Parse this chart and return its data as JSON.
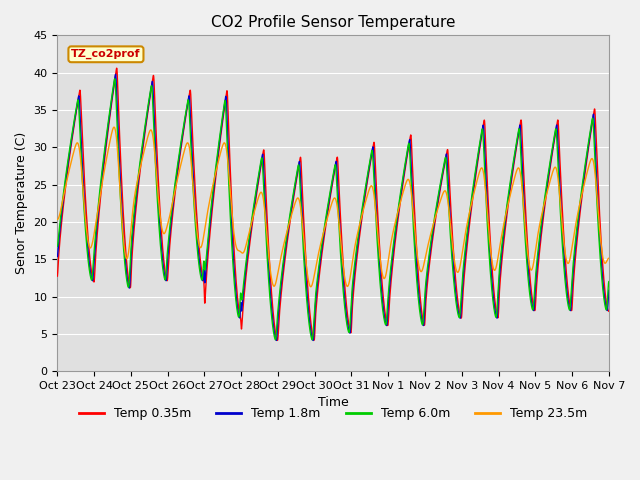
{
  "title": "CO2 Profile Sensor Temperature",
  "ylabel": "Senor Temperature (C)",
  "xlabel": "Time",
  "annotation": "TZ_co2prof",
  "annotation_color": "#cc0000",
  "annotation_bg": "#ffffcc",
  "annotation_border": "#cc8800",
  "ylim": [
    0,
    45
  ],
  "yticks": [
    0,
    5,
    10,
    15,
    20,
    25,
    30,
    35,
    40,
    45
  ],
  "xtick_labels": [
    "Oct 23",
    "Oct 24",
    "Oct 25",
    "Oct 26",
    "Oct 27",
    "Oct 28",
    "Oct 29",
    "Oct 30",
    "Oct 31",
    "Nov 1",
    "Nov 2",
    "Nov 3",
    "Nov 4",
    "Nov 5",
    "Nov 6",
    "Nov 7"
  ],
  "colors": {
    "Temp 0.35m": "#ff0000",
    "Temp 1.8m": "#0000cc",
    "Temp 6.0m": "#00cc00",
    "Temp 23.5m": "#ff9900"
  },
  "fig_facecolor": "#f0f0f0",
  "plot_bg": "#e0e0e0",
  "grid_color": "#ffffff",
  "title_fontsize": 11,
  "label_fontsize": 9,
  "tick_fontsize": 8
}
